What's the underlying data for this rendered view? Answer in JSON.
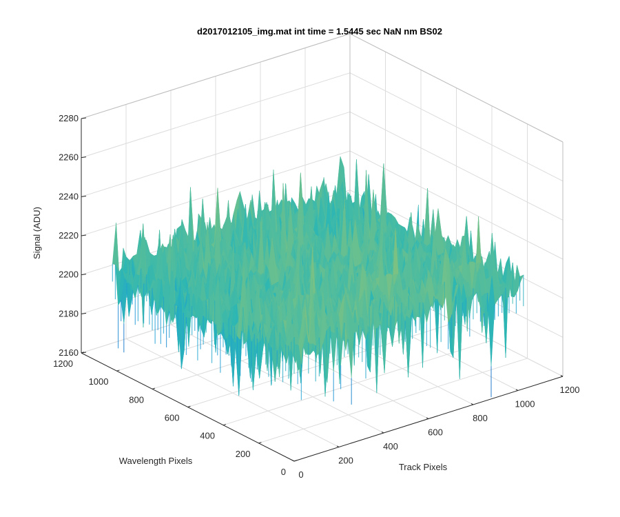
{
  "chart_data": {
    "type": "surface",
    "title": "d2017012105_img.mat int time = 1.5445 sec  NaN nm BS02",
    "xlabel": "Track Pixels",
    "ylabel": "Wavelength Pixels",
    "zlabel": "Signal (ADU)",
    "xlim": [
      0,
      1200
    ],
    "ylim": [
      0,
      1200
    ],
    "zlim": [
      2160,
      2280
    ],
    "x_ticks": [
      0,
      200,
      400,
      600,
      800,
      1000,
      1200
    ],
    "y_ticks": [
      0,
      200,
      400,
      600,
      800,
      1000,
      1200
    ],
    "z_ticks": [
      2160,
      2180,
      2200,
      2220,
      2240,
      2260,
      2280
    ],
    "surface_extent": {
      "x": [
        0,
        1024
      ],
      "y": [
        0,
        1024
      ]
    },
    "signal_mean": 2212,
    "signal_range": [
      2165,
      2265
    ],
    "grid": true,
    "colormap": [
      "#0c70c8",
      "#1a9bd7",
      "#2eb7b3",
      "#6cc08d",
      "#b2c45d",
      "#e3b93e"
    ]
  }
}
